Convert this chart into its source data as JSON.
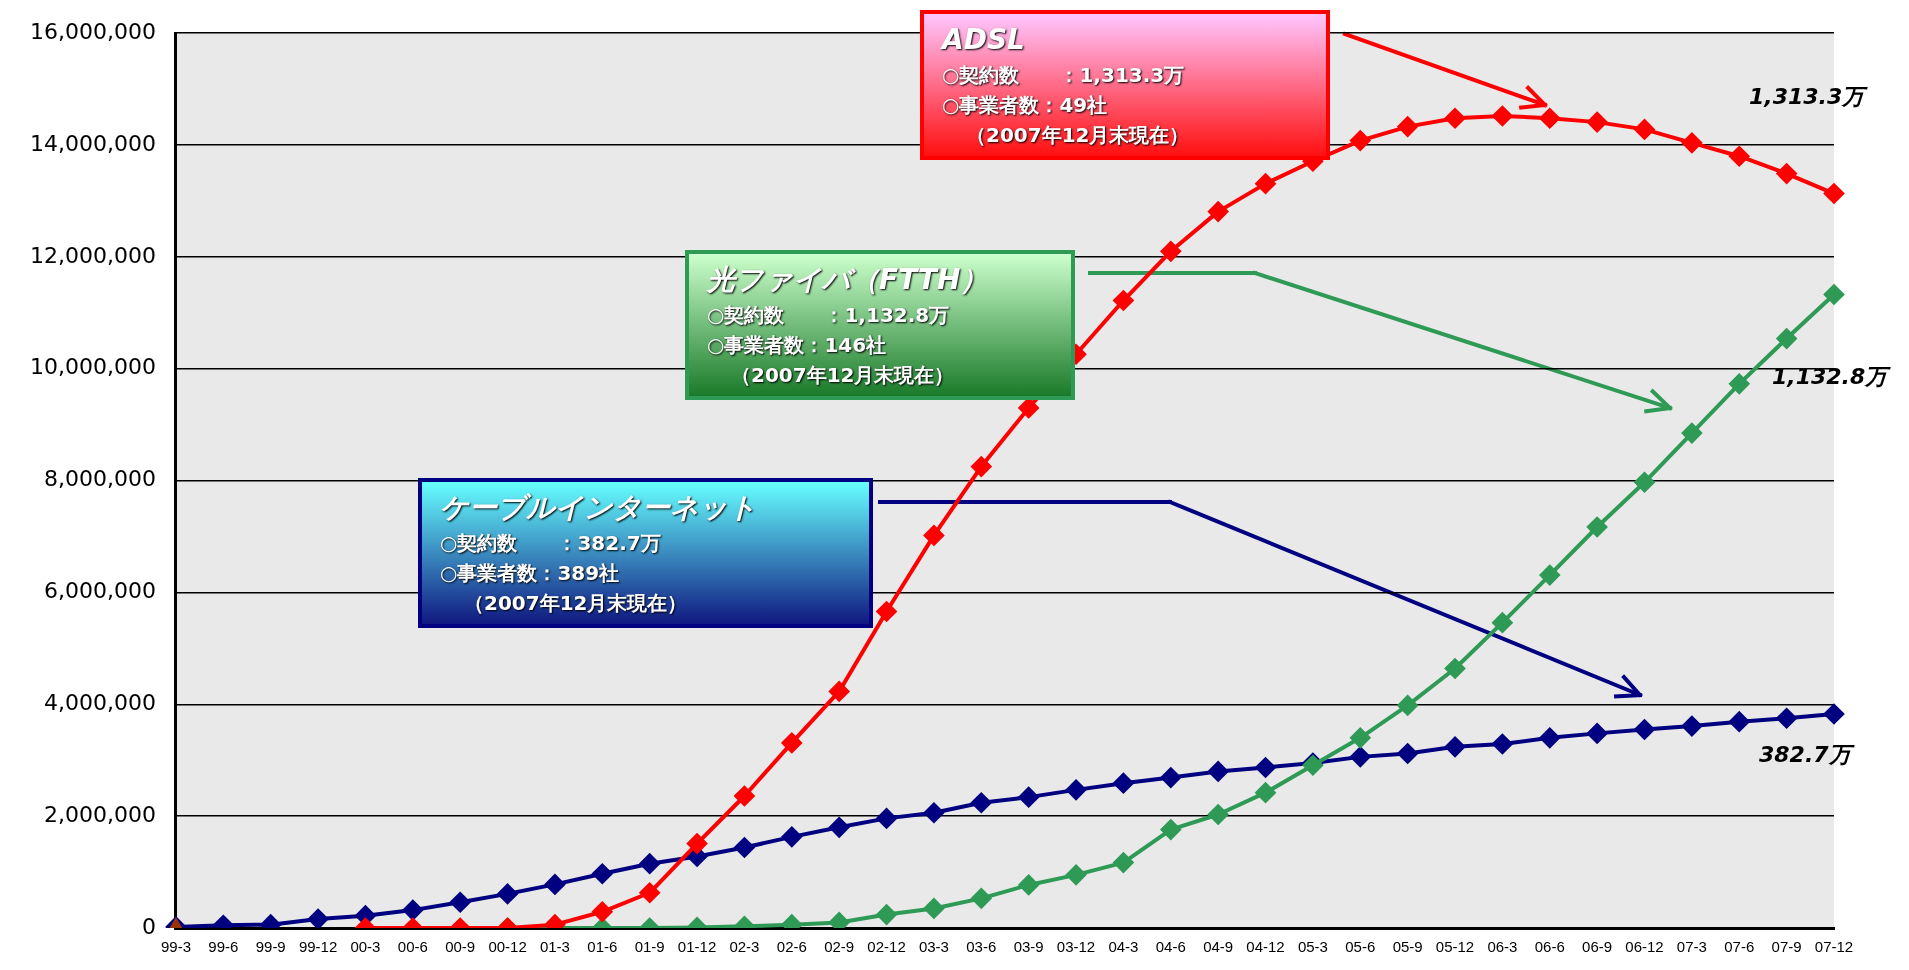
{
  "chart_data": {
    "type": "line",
    "categories": [
      "99-3",
      "99-6",
      "99-9",
      "99-12",
      "00-3",
      "00-6",
      "00-9",
      "00-12",
      "01-3",
      "01-6",
      "01-9",
      "01-12",
      "02-3",
      "02-6",
      "02-9",
      "02-12",
      "03-3",
      "03-6",
      "03-9",
      "03-12",
      "04-3",
      "04-6",
      "04-9",
      "04-12",
      "05-3",
      "05-6",
      "05-9",
      "05-12",
      "06-3",
      "06-6",
      "06-9",
      "06-12",
      "07-3",
      "07-6",
      "07-9",
      "07-12"
    ],
    "series": [
      {
        "color": "#ff0000",
        "values": [
          null,
          null,
          null,
          null,
          0,
          0,
          0,
          0,
          60000,
          290000,
          630000,
          1510000,
          2360000,
          3310000,
          4230000,
          5660000,
          7020000,
          8250000,
          9300000,
          10260000,
          11220000,
          12100000,
          12810000,
          13310000,
          13710000,
          14080000,
          14330000,
          14480000,
          14520000,
          14480000,
          14410000,
          14280000,
          14040000,
          13800000,
          13490000,
          13133000
        ]
      },
      {
        "color": "#2e9a55",
        "values": [
          null,
          null,
          null,
          null,
          null,
          null,
          null,
          0,
          0,
          0,
          0,
          10000,
          30000,
          60000,
          100000,
          240000,
          350000,
          530000,
          770000,
          950000,
          1170000,
          1760000,
          2030000,
          2420000,
          2910000,
          3400000,
          3980000,
          4640000,
          5460000,
          6310000,
          7170000,
          7970000,
          8850000,
          9730000,
          10540000,
          11328000
        ]
      },
      {
        "color": "#000080",
        "values": [
          20000,
          50000,
          60000,
          160000,
          220000,
          320000,
          460000,
          610000,
          780000,
          970000,
          1150000,
          1280000,
          1440000,
          1630000,
          1800000,
          1960000,
          2060000,
          2240000,
          2340000,
          2470000,
          2590000,
          2690000,
          2800000,
          2870000,
          2950000,
          3060000,
          3120000,
          3240000,
          3290000,
          3400000,
          3480000,
          3550000,
          3610000,
          3690000,
          3750000,
          3827000
        ]
      },
      {
        "color": "#993300",
        "marker": "triangle",
        "values": [
          0,
          null,
          null,
          null,
          null,
          null,
          null,
          null,
          null,
          null,
          null,
          null,
          null,
          null,
          null,
          null,
          null,
          null,
          null,
          null,
          null,
          null,
          null,
          null,
          null,
          null,
          null,
          null,
          null,
          null,
          null,
          null,
          null,
          null,
          null,
          null
        ]
      }
    ],
    "ylim": [
      0,
      16000000
    ],
    "yticks": [
      {
        "value": 0,
        "label": "0"
      },
      {
        "value": 2000000,
        "label": "2,000,000"
      },
      {
        "value": 4000000,
        "label": "4,000,000"
      },
      {
        "value": 6000000,
        "label": "6,000,000"
      },
      {
        "value": 8000000,
        "label": "8,000,000"
      },
      {
        "value": 10000000,
        "label": "10,000,000"
      },
      {
        "value": 12000000,
        "label": "12,000,000"
      },
      {
        "value": 14000000,
        "label": "14,000,000"
      },
      {
        "value": 16000000,
        "label": "16,000,000"
      }
    ],
    "grid": "y",
    "legend": false,
    "marker": "diamond",
    "line_style": "solid",
    "annotations": [
      "ADSL",
      "○契約数　　：1,313.3万",
      "○事業者数：49社",
      "（2007年12月末現在）",
      "光ファイバ（FTTH）",
      "○契約数　　：1,132.8万",
      "○事業者数：146社",
      "（2007年12月末現在）",
      "ケーブルインターネット",
      "○契約数　　：382.7万",
      "○事業者数：389社",
      "（2007年12月末現在）",
      "1,313.3万",
      "1,132.8万",
      "382.7万"
    ]
  }
}
